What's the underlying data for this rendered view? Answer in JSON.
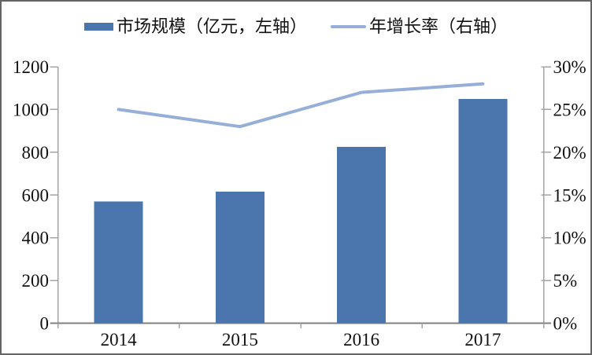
{
  "figure": {
    "background": "#ffffff",
    "border_color": "#646464"
  },
  "chart_data": {
    "type": "combo-bar-line",
    "title": "",
    "categories": [
      "2014",
      "2015",
      "2016",
      "2017"
    ],
    "series": [
      {
        "name": "市场规模（亿元，左轴）",
        "type": "bar",
        "axis": "left",
        "color": "#4A76AD",
        "values": [
          570,
          615,
          825,
          1050
        ]
      },
      {
        "name": "年增长率（右轴）",
        "type": "line",
        "axis": "right",
        "color": "#95AFD8",
        "values": [
          25,
          23,
          27,
          28
        ]
      }
    ],
    "left_axis": {
      "min": 0,
      "max": 1200,
      "step": 200,
      "tick_labels": [
        "0",
        "200",
        "400",
        "600",
        "800",
        "1000",
        "1200"
      ]
    },
    "right_axis": {
      "min": 0,
      "max": 30,
      "step": 5,
      "tick_labels": [
        "0%",
        "5%",
        "10%",
        "15%",
        "20%",
        "25%",
        "30%"
      ]
    },
    "legend_position": "top",
    "grid": false,
    "axis_color": "#a3a3a3",
    "baseline_color": "#7f7f7f",
    "text_color": "#111111"
  }
}
